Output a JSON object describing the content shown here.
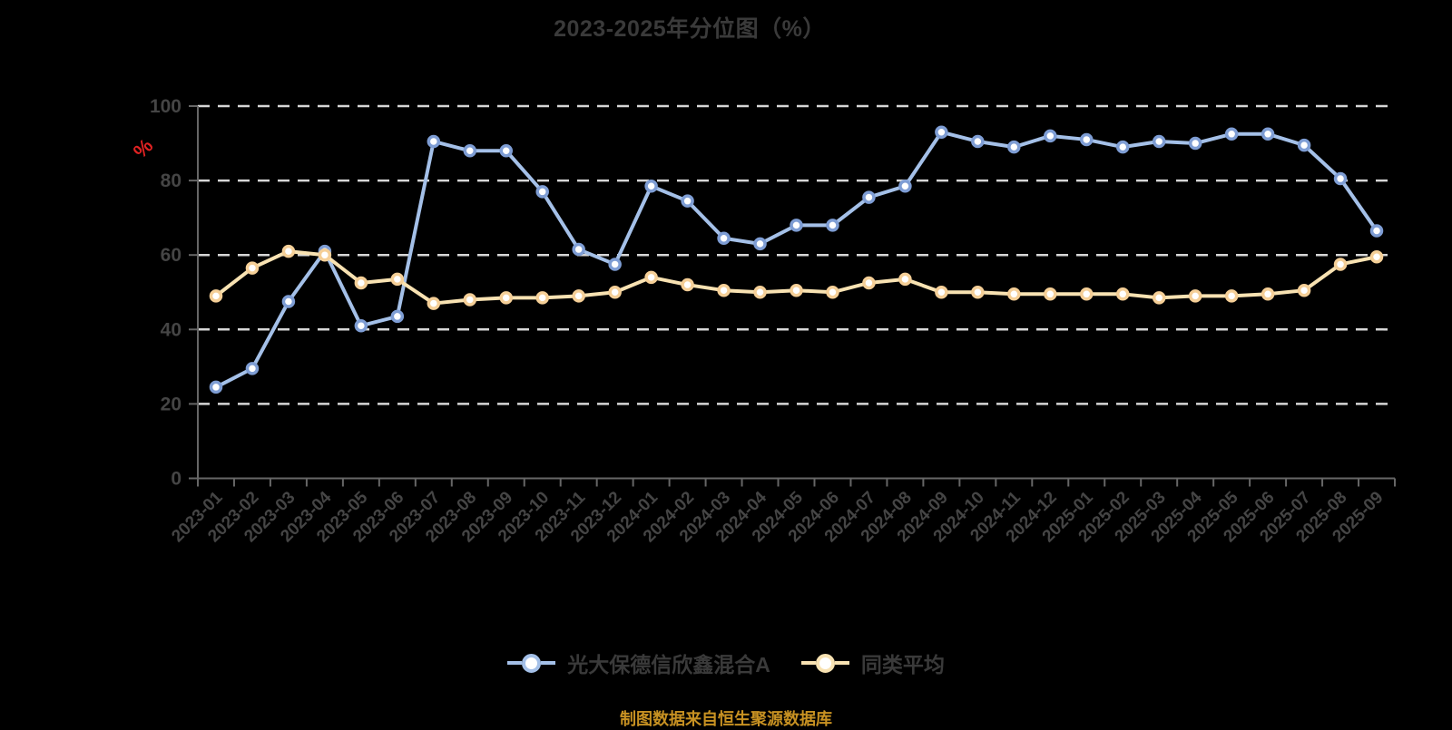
{
  "title": "2023-2025年分位图（%）",
  "footer": "制图数据来自恒生聚源数据库",
  "chart_data": {
    "type": "line",
    "x": [
      "2023-01",
      "2023-02",
      "2023-03",
      "2023-04",
      "2023-05",
      "2023-06",
      "2023-07",
      "2023-08",
      "2023-09",
      "2023-10",
      "2023-11",
      "2023-12",
      "2024-01",
      "2024-02",
      "2024-03",
      "2024-04",
      "2024-05",
      "2024-06",
      "2024-07",
      "2024-08",
      "2024-09",
      "2024-10",
      "2024-11",
      "2024-12",
      "2025-01",
      "2025-02",
      "2025-03",
      "2025-04",
      "2025-05",
      "2025-06",
      "2025-07",
      "2025-08",
      "2025-09"
    ],
    "series": [
      {
        "name": "光大保德信欣鑫混合A",
        "color": "#a4c0e8",
        "marker_ring": "#7e9dd4",
        "values": [
          24.5,
          29.5,
          47.5,
          61,
          41,
          43.5,
          90.5,
          88,
          88,
          77,
          61.5,
          57.5,
          78.5,
          74.5,
          64.5,
          63,
          68,
          68,
          75.5,
          78.5,
          93,
          90.5,
          89,
          92,
          91,
          89,
          90.5,
          90,
          92.5,
          92.5,
          89.5,
          80.5,
          66.5
        ]
      },
      {
        "name": "同类平均",
        "color": "#f8e2b2",
        "marker_ring": "#f5cf97",
        "values": [
          49,
          56.5,
          61,
          60,
          52.5,
          53.5,
          47,
          48,
          48.5,
          48.5,
          49,
          50,
          54,
          52,
          50.5,
          50,
          50.5,
          50,
          52.5,
          53.5,
          50,
          50,
          49.5,
          49.5,
          49.5,
          49.5,
          48.5,
          49,
          49,
          49.5,
          50.5,
          57.5,
          59.5
        ]
      }
    ],
    "ylabel": "%",
    "ylim": [
      0,
      100
    ],
    "yticks": [
      0,
      20,
      40,
      60,
      80,
      100
    ],
    "grid": "horizontal-dashed",
    "legend_position": "bottom",
    "colors": {
      "background": "#000000",
      "title_text": "#3a3a3a",
      "axis_line": "#666666",
      "grid_line": "#d6d6d6",
      "tick_label": "#454545",
      "ylabel_red": "#e02222",
      "legend_text": "#3a3a3a",
      "footer_text": "#c79122",
      "marker_fill": "#ffffff"
    }
  }
}
